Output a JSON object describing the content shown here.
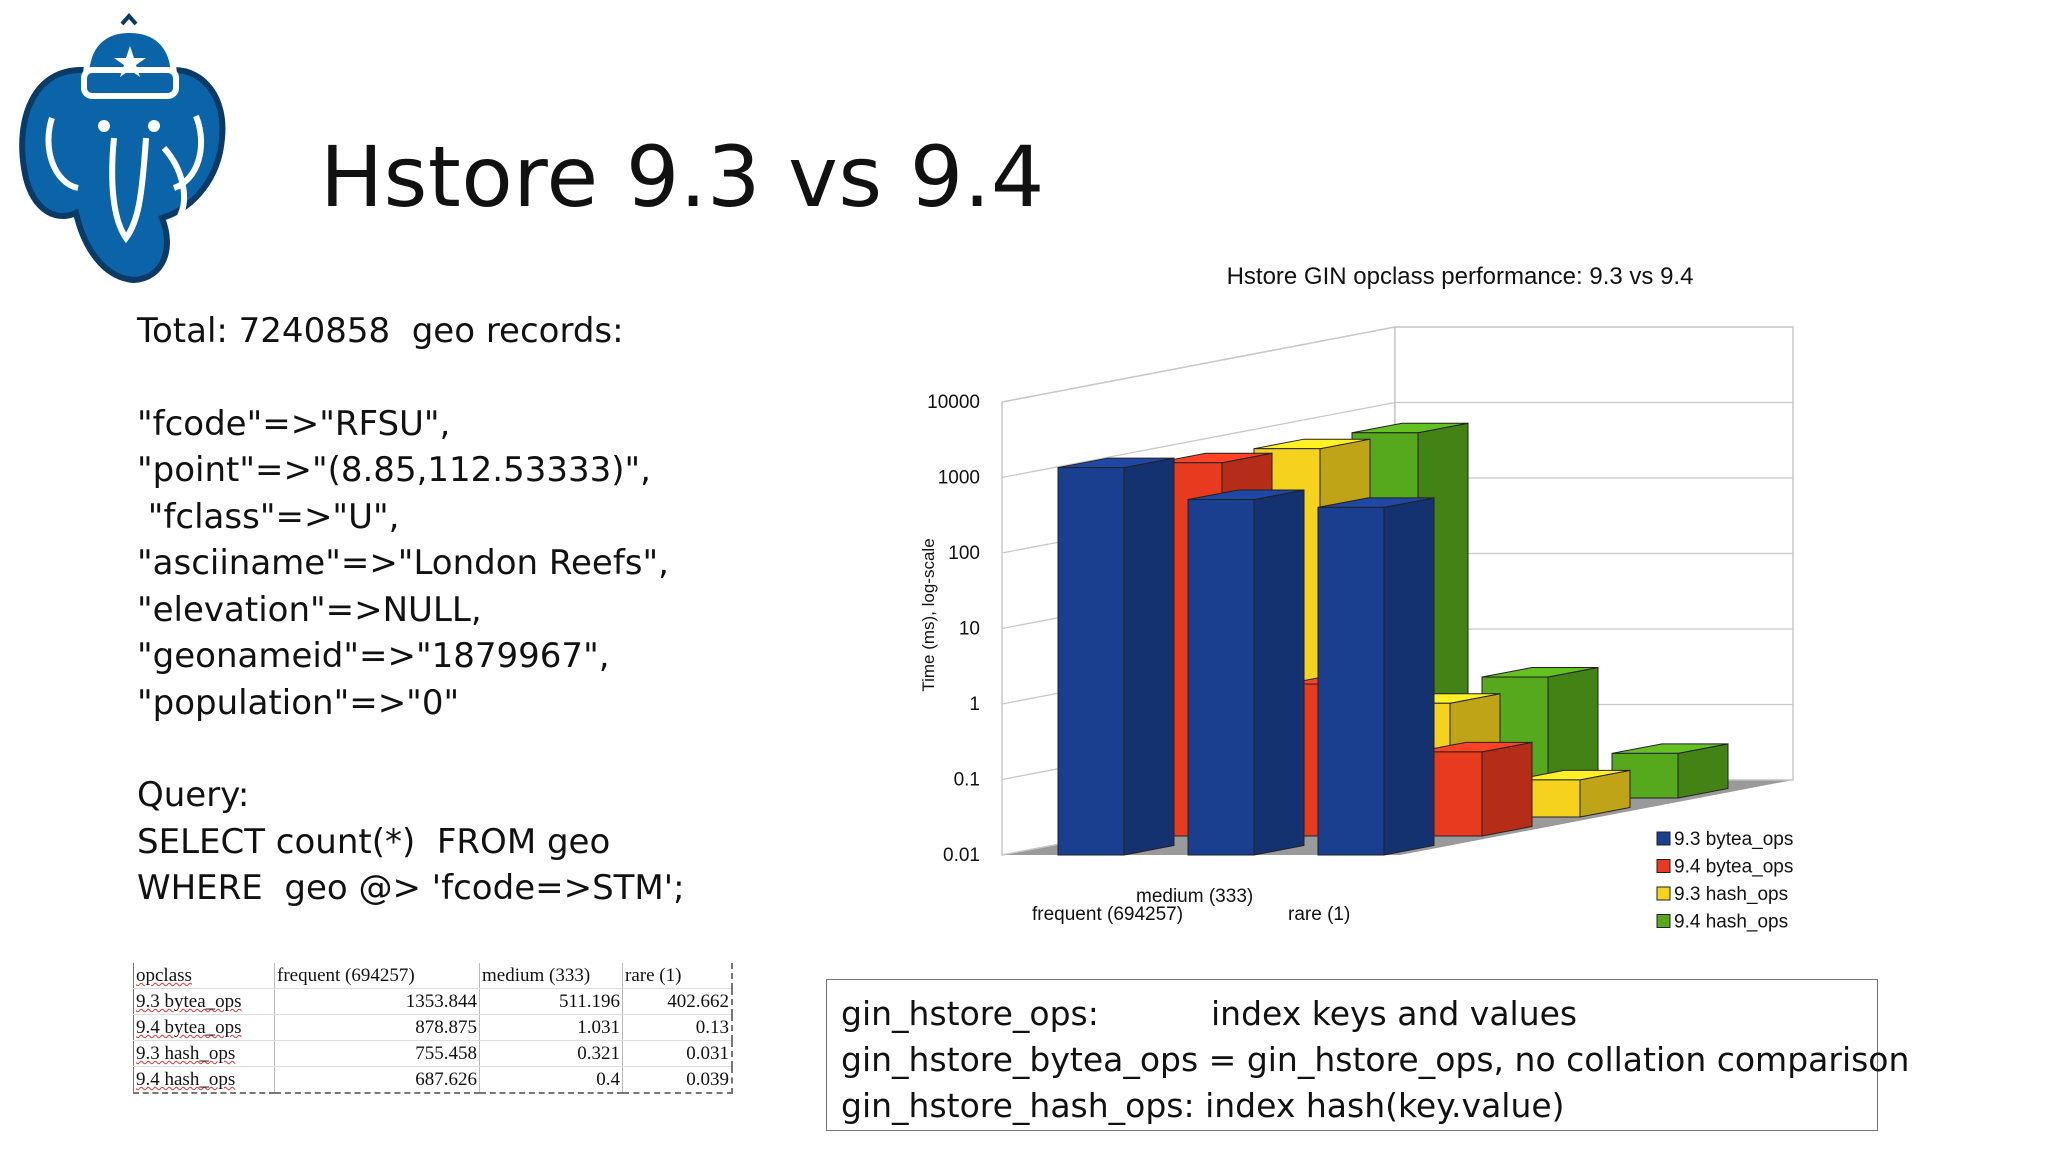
{
  "slide": {
    "title": "Hstore 9.3 vs 9.4"
  },
  "logo": {
    "icon": "postgresql-elephant-icon",
    "color": "#0c64a8"
  },
  "left": {
    "lines": [
      "Total: 7240858  geo records:",
      "",
      "\"fcode\"=>\"RFSU\",",
      "\"point\"=>\"(8.85,112.53333)\",",
      " \"fclass\"=>\"U\",",
      "\"asciiname\"=>\"London Reefs\",",
      "\"elevation\"=>NULL,",
      "\"geonameid\"=>\"1879967\",",
      "\"population\"=>\"0\"",
      "",
      "Query:",
      "SELECT count(*)  FROM geo",
      "WHERE  geo @> 'fcode=>STM';"
    ]
  },
  "table": {
    "header": [
      "opclass",
      "frequent (694257)",
      "medium (333)",
      "rare (1)"
    ],
    "rows": [
      [
        "9.3 bytea_ops",
        "1353.844",
        "511.196",
        "402.662"
      ],
      [
        "9.4 bytea_ops",
        "878.875",
        "1.031",
        "0.13"
      ],
      [
        "9.3 hash_ops",
        "755.458",
        "0.321",
        "0.031"
      ],
      [
        "9.4 hash_ops",
        "687.626",
        "0.4",
        "0.039"
      ]
    ]
  },
  "info": {
    "lines": [
      [
        "gin_hstore_ops:",
        "index keys and values"
      ],
      [
        "gin_hstore_bytea_ops = gin_hstore_ops, no collation comparison",
        ""
      ],
      [
        "gin_hstore_hash_ops:  index  hash(key.value)",
        ""
      ]
    ]
  },
  "chart_data": {
    "type": "bar",
    "title": "Hstore GIN opclass performance: 9.3 vs 9.4",
    "ylabel": "Time (ms), log-scale",
    "xlabel": "",
    "scale": "log",
    "ylim": [
      0.01,
      10000
    ],
    "yticks": [
      "10000",
      "1000",
      "100",
      "10",
      "1",
      "0.1",
      "0.01"
    ],
    "categories": [
      "frequent (694257)",
      "medium (333)",
      "rare (1)"
    ],
    "series": [
      {
        "name": "9.3 bytea_ops",
        "color": "#1a3f8f",
        "values": [
          1353.844,
          511.196,
          402.662
        ]
      },
      {
        "name": "9.4 bytea_ops",
        "color": "#e83a1f",
        "values": [
          878.875,
          1.031,
          0.13
        ]
      },
      {
        "name": "9.3 hash_ops",
        "color": "#f5d21e",
        "values": [
          755.458,
          0.321,
          0.031
        ]
      },
      {
        "name": "9.4 hash_ops",
        "color": "#56a81c",
        "values": [
          687.626,
          0.4,
          0.039
        ]
      }
    ],
    "grid": true,
    "legend": "bottom-right"
  }
}
